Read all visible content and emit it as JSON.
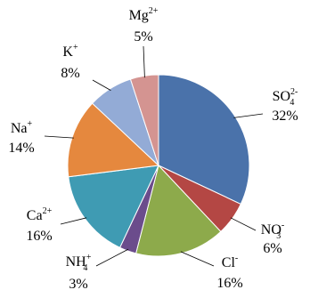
{
  "chart_data": {
    "type": "pie",
    "start_angle": "12 o'clock",
    "direction": "clockwise",
    "slices": [
      {
        "name": "SO4 2-",
        "base": "SO",
        "sub": "4",
        "sup": "2-",
        "value": 32,
        "label": "32%",
        "color": "#4a72aa"
      },
      {
        "name": "NO3 -",
        "base": "NO",
        "sub": "3",
        "sup": "-",
        "value": 6,
        "label": "6%",
        "color": "#b44744"
      },
      {
        "name": "Cl-",
        "base": "Cl",
        "sub": "",
        "sup": "-",
        "value": 16,
        "label": "16%",
        "color": "#8daa4b"
      },
      {
        "name": "NH4 +",
        "base": "NH",
        "sub": "4",
        "sup": "+",
        "value": 3,
        "label": "3%",
        "color": "#6b4c8c"
      },
      {
        "name": "Ca2+",
        "base": "Ca",
        "sub": "",
        "sup": "2+",
        "value": 16,
        "label": "16%",
        "color": "#3f9bb3"
      },
      {
        "name": "Na+",
        "base": "Na",
        "sub": "",
        "sup": "+",
        "value": 14,
        "label": "14%",
        "color": "#e5883e"
      },
      {
        "name": "K+",
        "base": "K",
        "sub": "",
        "sup": "+",
        "value": 8,
        "label": "8%",
        "color": "#93abd6"
      },
      {
        "name": "Mg2+",
        "base": "Mg",
        "sub": "",
        "sup": "2+",
        "value": 5,
        "label": "5%",
        "color": "#d49491"
      }
    ]
  }
}
